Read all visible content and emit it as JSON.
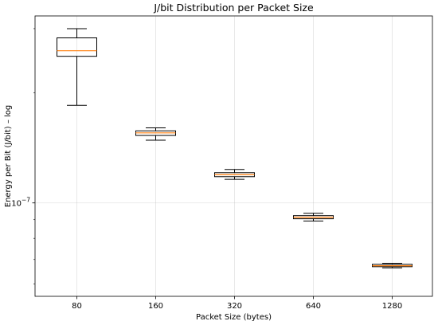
{
  "chart_data": {
    "type": "box",
    "title": "J/bit Distribution per Packet Size",
    "xlabel": "Packet Size (bytes)",
    "ylabel": "Energy per Bit (J/bit) – log",
    "yscale": "log",
    "ylim": [
      5.55e-08,
      3.25e-07
    ],
    "grid": true,
    "categories": [
      "80",
      "160",
      "320",
      "640",
      "1280"
    ],
    "boxes": [
      {
        "whisker_low": 1.85e-07,
        "q1": 2.52e-07,
        "median": 2.61e-07,
        "q3": 2.83e-07,
        "whisker_high": 3e-07
      },
      {
        "whisker_low": 1.485e-07,
        "q1": 1.53e-07,
        "median": 1.555e-07,
        "q3": 1.575e-07,
        "whisker_high": 1.605e-07
      },
      {
        "whisker_low": 1.16e-07,
        "q1": 1.18e-07,
        "median": 1.195e-07,
        "q3": 1.21e-07,
        "whisker_high": 1.235e-07
      },
      {
        "whisker_low": 8.92e-08,
        "q1": 9.05e-08,
        "median": 9.13e-08,
        "q3": 9.23e-08,
        "whisker_high": 9.37e-08
      },
      {
        "whisker_low": 6.64e-08,
        "q1": 6.69e-08,
        "median": 6.73e-08,
        "q3": 6.79e-08,
        "whisker_high": 6.83e-08
      }
    ],
    "y_ticks": [
      {
        "value": 1e-07,
        "base": "10",
        "exponent": "−7"
      }
    ],
    "colors": {
      "box": "#000000",
      "median": "#ff7f0e",
      "grid": "#b0b0b0"
    }
  }
}
